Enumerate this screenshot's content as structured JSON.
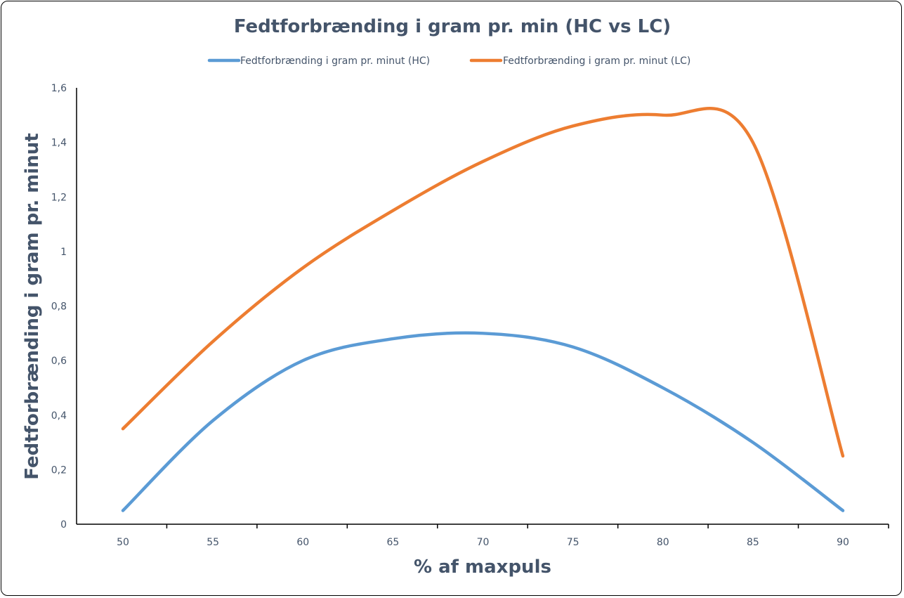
{
  "chart_data": {
    "type": "line",
    "title": "Fedtforbrænding i gram pr. min (HC vs LC)",
    "xlabel": "% af maxpuls",
    "ylabel": "Fedtforbrænding i gram pr. minut",
    "x": [
      50,
      55,
      60,
      65,
      70,
      75,
      80,
      85,
      90
    ],
    "x_tick_labels": [
      "50",
      "55",
      "60",
      "65",
      "70",
      "75",
      "80",
      "85",
      "90"
    ],
    "ylim": [
      0,
      1.6
    ],
    "y_ticks": [
      0,
      0.2,
      0.4,
      0.6,
      0.8,
      1,
      1.2,
      1.4,
      1.6
    ],
    "y_tick_labels": [
      "0",
      "0,2",
      "0,4",
      "0,6",
      "0,8",
      "1",
      "1,2",
      "1,4",
      "1,6"
    ],
    "legend_position": "top",
    "grid": false,
    "series": [
      {
        "name": "Fedtforbrænding i gram pr. minut (HC)",
        "color": "#5b9bd5",
        "values": [
          0.05,
          0.38,
          0.6,
          0.68,
          0.7,
          0.65,
          0.5,
          0.3,
          0.05
        ]
      },
      {
        "name": "Fedtforbrænding i gram pr. minut (LC)",
        "color": "#ed7d31",
        "values": [
          0.35,
          0.67,
          0.94,
          1.15,
          1.33,
          1.46,
          1.5,
          1.4,
          0.25
        ]
      }
    ]
  }
}
